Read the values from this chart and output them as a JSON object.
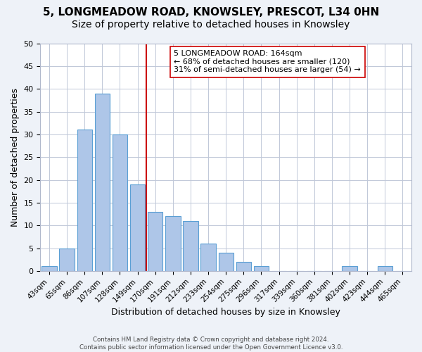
{
  "title": "5, LONGMEADOW ROAD, KNOWSLEY, PRESCOT, L34 0HN",
  "subtitle": "Size of property relative to detached houses in Knowsley",
  "xlabel": "Distribution of detached houses by size in Knowsley",
  "ylabel": "Number of detached properties",
  "bin_labels": [
    "43sqm",
    "65sqm",
    "86sqm",
    "107sqm",
    "128sqm",
    "149sqm",
    "170sqm",
    "191sqm",
    "212sqm",
    "233sqm",
    "254sqm",
    "275sqm",
    "296sqm",
    "317sqm",
    "339sqm",
    "360sqm",
    "381sqm",
    "402sqm",
    "423sqm",
    "444sqm",
    "465sqm"
  ],
  "bar_values": [
    1,
    5,
    31,
    39,
    30,
    19,
    13,
    12,
    11,
    6,
    4,
    2,
    1,
    0,
    0,
    0,
    0,
    1,
    0,
    1,
    0
  ],
  "bar_color": "#aec6e8",
  "bar_edge_color": "#5a9fd4",
  "vline_x": 5.5,
  "vline_color": "#cc0000",
  "annotation_title": "5 LONGMEADOW ROAD: 164sqm",
  "annotation_line1": "← 68% of detached houses are smaller (120)",
  "annotation_line2": "31% of semi-detached houses are larger (54) →",
  "ylim": [
    0,
    50
  ],
  "yticks": [
    0,
    5,
    10,
    15,
    20,
    25,
    30,
    35,
    40,
    45,
    50
  ],
  "footer_line1": "Contains HM Land Registry data © Crown copyright and database right 2024.",
  "footer_line2": "Contains public sector information licensed under the Open Government Licence v3.0.",
  "background_color": "#eef2f8",
  "plot_bg_color": "#ffffff",
  "title_fontsize": 11,
  "subtitle_fontsize": 10,
  "label_fontsize": 9
}
